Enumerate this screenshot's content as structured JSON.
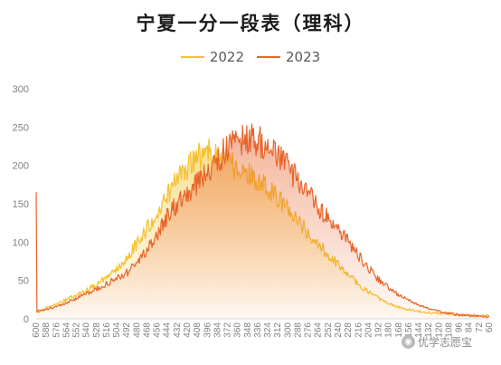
{
  "chart_data": {
    "type": "area",
    "title": "宁夏一分一段表（理科）",
    "xlabel": "",
    "ylabel": "",
    "ylim": [
      0,
      300
    ],
    "y_ticks": [
      0,
      50,
      100,
      150,
      200,
      250,
      300
    ],
    "x_range": [
      600,
      60
    ],
    "x_tick_labels": [
      "600",
      "588",
      "576",
      "564",
      "552",
      "540",
      "528",
      "516",
      "504",
      "492",
      "480",
      "468",
      "456",
      "444",
      "432",
      "420",
      "408",
      "396",
      "384",
      "372",
      "360",
      "348",
      "336",
      "324",
      "312",
      "300",
      "288",
      "276",
      "264",
      "252",
      "240",
      "228",
      "216",
      "204",
      "192",
      "180",
      "168",
      "156",
      "144",
      "132",
      "120",
      "108",
      "96",
      "84",
      "72",
      "60"
    ],
    "grid": false,
    "legend_position": "top",
    "series": [
      {
        "name": "2022",
        "color": "#F5C12E",
        "points": [
          [
            600,
            8
          ],
          [
            588,
            14
          ],
          [
            576,
            19
          ],
          [
            564,
            25
          ],
          [
            552,
            31
          ],
          [
            540,
            37
          ],
          [
            528,
            45
          ],
          [
            516,
            53
          ],
          [
            504,
            64
          ],
          [
            492,
            79
          ],
          [
            480,
            98
          ],
          [
            468,
            117
          ],
          [
            456,
            138
          ],
          [
            444,
            160
          ],
          [
            432,
            180
          ],
          [
            420,
            197
          ],
          [
            408,
            210
          ],
          [
            396,
            217
          ],
          [
            384,
            214
          ],
          [
            372,
            203
          ],
          [
            360,
            195
          ],
          [
            348,
            188
          ],
          [
            336,
            180
          ],
          [
            324,
            169
          ],
          [
            312,
            157
          ],
          [
            300,
            143
          ],
          [
            288,
            127
          ],
          [
            276,
            112
          ],
          [
            264,
            98
          ],
          [
            252,
            84
          ],
          [
            240,
            70
          ],
          [
            228,
            57
          ],
          [
            216,
            45
          ],
          [
            204,
            35
          ],
          [
            192,
            27
          ],
          [
            180,
            20
          ],
          [
            168,
            15
          ],
          [
            156,
            12
          ],
          [
            144,
            10
          ],
          [
            132,
            8
          ],
          [
            120,
            7
          ],
          [
            108,
            6
          ],
          [
            96,
            5
          ],
          [
            84,
            5
          ],
          [
            72,
            4
          ],
          [
            60,
            4
          ]
        ]
      },
      {
        "name": "2023",
        "color": "#E8632A",
        "points": [
          [
            600,
            165
          ],
          [
            599,
            10
          ],
          [
            588,
            12
          ],
          [
            576,
            16
          ],
          [
            564,
            21
          ],
          [
            552,
            27
          ],
          [
            540,
            33
          ],
          [
            528,
            39
          ],
          [
            516,
            45
          ],
          [
            504,
            52
          ],
          [
            492,
            60
          ],
          [
            480,
            73
          ],
          [
            468,
            90
          ],
          [
            456,
            110
          ],
          [
            444,
            132
          ],
          [
            432,
            150
          ],
          [
            420,
            164
          ],
          [
            408,
            177
          ],
          [
            396,
            193
          ],
          [
            384,
            208
          ],
          [
            372,
            222
          ],
          [
            360,
            231
          ],
          [
            348,
            236
          ],
          [
            336,
            232
          ],
          [
            324,
            224
          ],
          [
            312,
            212
          ],
          [
            300,
            197
          ],
          [
            288,
            180
          ],
          [
            276,
            163
          ],
          [
            264,
            146
          ],
          [
            252,
            131
          ],
          [
            240,
            117
          ],
          [
            228,
            100
          ],
          [
            216,
            82
          ],
          [
            204,
            66
          ],
          [
            192,
            52
          ],
          [
            180,
            40
          ],
          [
            168,
            31
          ],
          [
            156,
            24
          ],
          [
            144,
            18
          ],
          [
            132,
            14
          ],
          [
            120,
            10
          ],
          [
            108,
            7
          ],
          [
            96,
            5
          ],
          [
            84,
            4
          ],
          [
            72,
            3
          ],
          [
            60,
            2
          ]
        ]
      }
    ]
  },
  "watermark": {
    "text": "优学志愿宝",
    "icon": "wechat-icon"
  }
}
